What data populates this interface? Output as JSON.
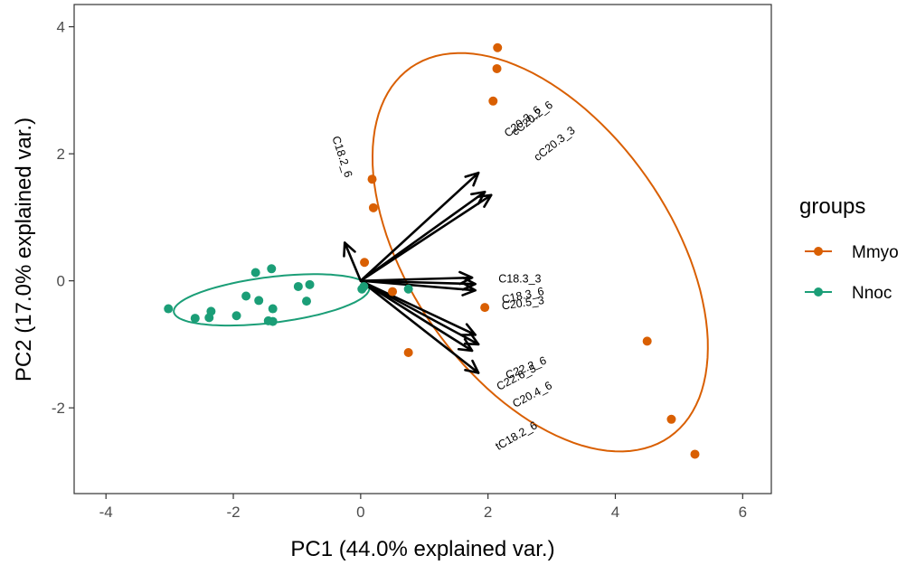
{
  "chart_data": {
    "type": "scatter",
    "xlabel": "PC1 (44.0% explained var.)",
    "ylabel": "PC2 (17.0% explained var.)",
    "xlim": [
      -4.5,
      6.45
    ],
    "ylim": [
      -3.35,
      4.35
    ],
    "xticks": [
      -4,
      -2,
      0,
      2,
      4,
      6
    ],
    "yticks": [
      -2,
      0,
      2,
      4
    ],
    "grid": false,
    "legend": {
      "title": "groups",
      "placement": "right",
      "entries": [
        {
          "name": "Mmyo",
          "color": "#d95f02"
        },
        {
          "name": "Nnoc",
          "color": "#1b9e77"
        }
      ]
    },
    "series": [
      {
        "name": "Mmyo",
        "color": "#d95f02",
        "points": [
          [
            2.15,
            3.67
          ],
          [
            2.14,
            3.34
          ],
          [
            2.08,
            2.83
          ],
          [
            0.18,
            1.6
          ],
          [
            0.2,
            1.15
          ],
          [
            0.06,
            0.29
          ],
          [
            0.5,
            -0.17
          ],
          [
            1.95,
            -0.42
          ],
          [
            0.75,
            -1.13
          ],
          [
            4.5,
            -0.95
          ],
          [
            4.88,
            -2.18
          ],
          [
            5.25,
            -2.73
          ]
        ],
        "ellipse": {
          "cx": 2.82,
          "cy": 0.45,
          "rx": 3.55,
          "ry": 2.05,
          "angle_deg": -55
        }
      },
      {
        "name": "Nnoc",
        "color": "#1b9e77",
        "points": [
          [
            -3.02,
            -0.44
          ],
          [
            -2.6,
            -0.59
          ],
          [
            -2.35,
            -0.48
          ],
          [
            -2.38,
            -0.58
          ],
          [
            -1.95,
            -0.55
          ],
          [
            -1.8,
            -0.24
          ],
          [
            -1.65,
            0.13
          ],
          [
            -1.6,
            -0.31
          ],
          [
            -1.4,
            0.19
          ],
          [
            -1.38,
            -0.44
          ],
          [
            -1.45,
            -0.63
          ],
          [
            -1.38,
            -0.64
          ],
          [
            -0.98,
            -0.09
          ],
          [
            -0.8,
            -0.06
          ],
          [
            -0.85,
            -0.32
          ],
          [
            0.02,
            -0.13
          ],
          [
            0.05,
            -0.09
          ],
          [
            0.75,
            -0.13
          ]
        ],
        "ellipse": {
          "cx": -1.4,
          "cy": -0.3,
          "rx": 1.55,
          "ry": 0.36,
          "angle_deg": 7
        }
      }
    ],
    "loadings": [
      {
        "name": "C18.2_6",
        "x": -0.25,
        "y": 0.6,
        "label_x": -0.3,
        "label_y": 1.95,
        "label_angle": 72
      },
      {
        "name": "C20.3_6",
        "x": 1.85,
        "y": 1.7,
        "label_x": 2.55,
        "label_y": 2.5,
        "label_angle": -38
      },
      {
        "name": "cC20.2_6",
        "x": 1.95,
        "y": 1.4,
        "label_x": 2.7,
        "label_y": 2.55,
        "label_angle": -38
      },
      {
        "name": "cC20.3_3",
        "x": 2.05,
        "y": 1.35,
        "label_x": 3.05,
        "label_y": 2.15,
        "label_angle": -38
      },
      {
        "name": "C18.3_3",
        "x": 1.75,
        "y": 0.05,
        "label_x": 2.5,
        "label_y": 0.02,
        "label_angle": 0
      },
      {
        "name": "C18.3_6",
        "x": 1.8,
        "y": -0.15,
        "label_x": 2.55,
        "label_y": -0.24,
        "label_angle": -12
      },
      {
        "name": "C20.5_3",
        "x": 1.8,
        "y": -0.05,
        "label_x": 2.55,
        "label_y": -0.36,
        "label_angle": -8
      },
      {
        "name": "C22.2_6",
        "x": 1.8,
        "y": -0.85,
        "label_x": 2.6,
        "label_y": -1.38,
        "label_angle": -22
      },
      {
        "name": "C22.6_3",
        "x": 1.85,
        "y": -1.0,
        "label_x": 2.45,
        "label_y": -1.53,
        "label_angle": -28
      },
      {
        "name": "C20.4_6",
        "x": 1.75,
        "y": -1.1,
        "label_x": 2.7,
        "label_y": -1.8,
        "label_angle": -28
      },
      {
        "name": "tC18.2_6",
        "x": 1.85,
        "y": -1.45,
        "label_x": 2.45,
        "label_y": -2.45,
        "label_angle": -30
      }
    ]
  }
}
